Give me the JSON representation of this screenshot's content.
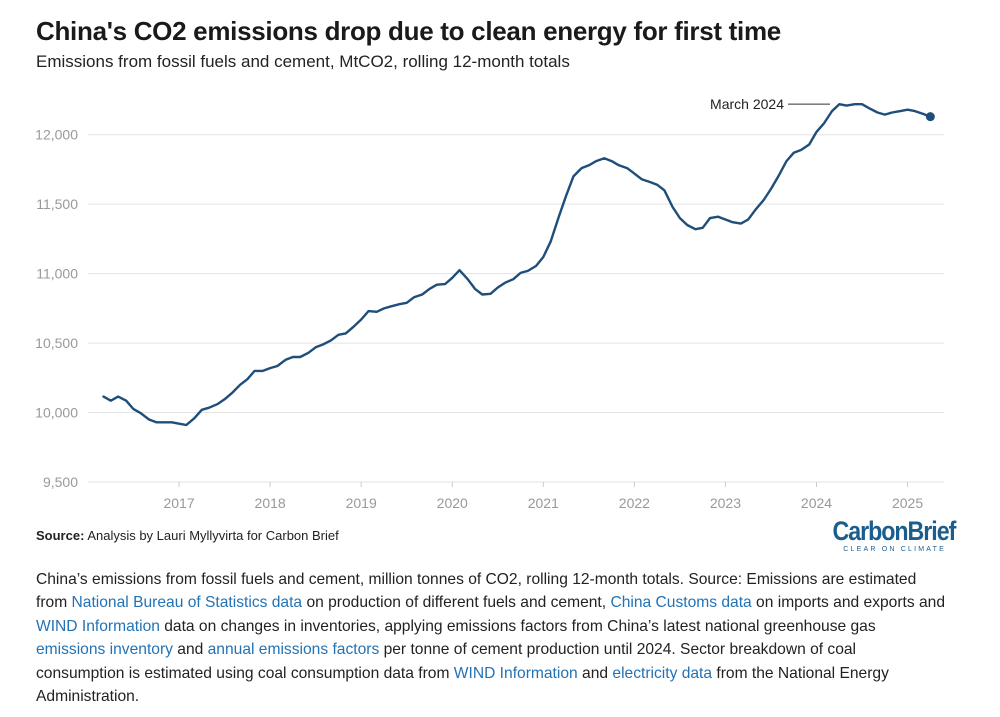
{
  "header": {
    "title": "China's CO2 emissions drop due to clean energy for first time",
    "subtitle": "Emissions from fossil fuels and cement, MtCO2, rolling 12-month totals"
  },
  "source": {
    "label": "Source:",
    "text": "Analysis by Lauri Myllyvirta for Carbon Brief"
  },
  "logo": {
    "main": "CarbonBrief",
    "tagline": "CLEAR ON CLIMATE"
  },
  "caption": {
    "t1": "China’s emissions from fossil fuels and cement, million tonnes of CO2, rolling 12-month totals. Source: Emissions are estimated from ",
    "l1": "National Bureau of Statistics data",
    "t2": " on production of different fuels and cement, ",
    "l2": "China Customs data",
    "t3": " on imports and exports and ",
    "l3": "WIND Information",
    "t4": " data on changes in inventories, applying emissions factors from China’s latest national greenhouse gas ",
    "l4": "emissions inventory",
    "t5": " and ",
    "l5": "annual emissions factors",
    "t6": " per tonne of cement production until 2024. Sector breakdown of coal consumption is estimated using coal consumption data from ",
    "l6": "WIND Information",
    "t7": " and ",
    "l7": "electricity data",
    "t8": " from the National Energy Administration."
  },
  "colors": {
    "line": "#1e4e79",
    "grid": "#e3e3e3",
    "axis_text": "#999999",
    "link": "#2372b4"
  },
  "chart_data": {
    "type": "line",
    "title": "China's CO2 emissions drop due to clean energy for first time",
    "ylabel": "MtCO2",
    "xlabel": "",
    "xlim": [
      2016.0,
      2025.4
    ],
    "ylim": [
      9500,
      12250
    ],
    "yticks": [
      9500,
      10000,
      10500,
      11000,
      11500,
      12000
    ],
    "ytick_labels": [
      "9,500",
      "10,000",
      "10,500",
      "11,000",
      "11,500",
      "12,000"
    ],
    "xticks": [
      2017,
      2018,
      2019,
      2020,
      2021,
      2022,
      2023,
      2024,
      2025
    ],
    "xtick_labels": [
      "2017",
      "2018",
      "2019",
      "2020",
      "2021",
      "2022",
      "2023",
      "2024",
      "2025"
    ],
    "annotation": {
      "label": "March 2024",
      "x": 2024.17,
      "y": 12220
    },
    "end_marker": {
      "x": 2025.25,
      "y": 12130
    },
    "series": [
      {
        "name": "Emissions",
        "x": [
          2016.17,
          2016.25,
          2016.33,
          2016.42,
          2016.5,
          2016.58,
          2016.67,
          2016.75,
          2016.83,
          2016.92,
          2017.0,
          2017.08,
          2017.17,
          2017.25,
          2017.33,
          2017.42,
          2017.5,
          2017.58,
          2017.67,
          2017.75,
          2017.83,
          2017.92,
          2018.0,
          2018.08,
          2018.17,
          2018.25,
          2018.33,
          2018.42,
          2018.5,
          2018.58,
          2018.67,
          2018.75,
          2018.83,
          2018.92,
          2019.0,
          2019.08,
          2019.17,
          2019.25,
          2019.33,
          2019.42,
          2019.5,
          2019.58,
          2019.67,
          2019.75,
          2019.83,
          2019.92,
          2020.0,
          2020.08,
          2020.17,
          2020.25,
          2020.33,
          2020.42,
          2020.5,
          2020.58,
          2020.67,
          2020.75,
          2020.83,
          2020.92,
          2021.0,
          2021.08,
          2021.17,
          2021.25,
          2021.33,
          2021.42,
          2021.5,
          2021.58,
          2021.67,
          2021.75,
          2021.83,
          2021.92,
          2022.0,
          2022.08,
          2022.17,
          2022.25,
          2022.33,
          2022.42,
          2022.5,
          2022.58,
          2022.67,
          2022.75,
          2022.83,
          2022.92,
          2023.0,
          2023.08,
          2023.17,
          2023.25,
          2023.33,
          2023.42,
          2023.5,
          2023.58,
          2023.67,
          2023.75,
          2023.83,
          2023.92,
          2024.0,
          2024.08,
          2024.17,
          2024.25,
          2024.33,
          2024.42,
          2024.5,
          2024.58,
          2024.67,
          2024.75,
          2024.83,
          2024.92,
          2025.0,
          2025.08,
          2025.17,
          2025.25
        ],
        "values": [
          10115,
          10085,
          10115,
          10085,
          10025,
          9995,
          9950,
          9930,
          9930,
          9930,
          9920,
          9910,
          9960,
          10020,
          10035,
          10060,
          10095,
          10140,
          10200,
          10240,
          10300,
          10300,
          10320,
          10335,
          10380,
          10400,
          10400,
          10430,
          10470,
          10490,
          10520,
          10560,
          10570,
          10620,
          10670,
          10730,
          10725,
          10750,
          10765,
          10780,
          10790,
          10830,
          10850,
          10890,
          10920,
          10925,
          10970,
          11025,
          10960,
          10890,
          10850,
          10855,
          10900,
          10935,
          10960,
          11005,
          11020,
          11055,
          11120,
          11230,
          11410,
          11560,
          11700,
          11760,
          11780,
          11810,
          11830,
          11810,
          11780,
          11760,
          11720,
          11680,
          11660,
          11640,
          11600,
          11480,
          11400,
          11350,
          11320,
          11330,
          11400,
          11410,
          11390,
          11370,
          11360,
          11390,
          11460,
          11530,
          11610,
          11700,
          11810,
          11870,
          11890,
          11930,
          12020,
          12080,
          12170,
          12220,
          12210,
          12220,
          12220,
          12190,
          12160,
          12145,
          12160,
          12170,
          12180,
          12170,
          12150,
          12130
        ]
      }
    ]
  }
}
